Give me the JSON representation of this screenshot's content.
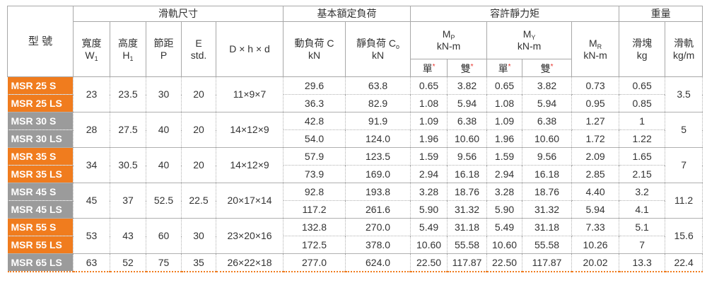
{
  "table": {
    "header": {
      "model": "型 號",
      "groups": [
        {
          "title": "滑軌尺寸",
          "cols": [
            {
              "line1": "寬度",
              "line2": "W",
              "sub2": "1"
            },
            {
              "line1": "高度",
              "line2": "H",
              "sub2": "1"
            },
            {
              "line1": "節距",
              "line2": "P"
            },
            {
              "line1": "E",
              "line2": "std."
            },
            {
              "line1": "D × h × d"
            }
          ]
        },
        {
          "title": "基本額定負荷",
          "cols": [
            {
              "line1": "動負荷 C",
              "line2": "kN"
            },
            {
              "line1": "靜負荷 C",
              "sub1": "o",
              "line2": "kN"
            }
          ]
        },
        {
          "title": "容許靜力矩",
          "cols": [
            {
              "line1": "M",
              "sub1": "P",
              "line2": "kN-m",
              "split": [
                {
                  "text": "單",
                  "mark": "*"
                },
                {
                  "text": "雙",
                  "mark": "*"
                }
              ]
            },
            {
              "line1": "M",
              "sub1": "Y",
              "line2": "kN-m",
              "split": [
                {
                  "text": "單",
                  "mark": "*"
                },
                {
                  "text": "雙",
                  "mark": "*"
                }
              ]
            },
            {
              "line1": "M",
              "sub1": "R",
              "line2": "kN-m"
            }
          ]
        },
        {
          "title": "重量",
          "cols": [
            {
              "line1": "滑塊",
              "line2": "kg"
            },
            {
              "line1": "滑軌",
              "line2": "kg/m"
            }
          ]
        }
      ]
    },
    "rows": [
      {
        "color": "#f07c1e",
        "models": [
          "MSR 25 S",
          "MSR 25 LS"
        ],
        "w1": "23",
        "h1": "23.5",
        "p": "30",
        "e": "20",
        "dhd": "11×9×7",
        "c": [
          "29.6",
          "36.3"
        ],
        "co": [
          "63.8",
          "82.9"
        ],
        "mp1": [
          "0.65",
          "1.08"
        ],
        "mp2": [
          "3.82",
          "5.94"
        ],
        "my1": [
          "0.65",
          "1.08"
        ],
        "my2": [
          "3.82",
          "5.94"
        ],
        "mr": [
          "0.73",
          "0.95"
        ],
        "slider": [
          "0.65",
          "0.85"
        ],
        "rail": "3.5"
      },
      {
        "color": "#9b9b9b",
        "models": [
          "MSR 30 S",
          "MSR 30 LS"
        ],
        "w1": "28",
        "h1": "27.5",
        "p": "40",
        "e": "20",
        "dhd": "14×12×9",
        "c": [
          "42.8",
          "54.0"
        ],
        "co": [
          "91.9",
          "124.0"
        ],
        "mp1": [
          "1.09",
          "1.96"
        ],
        "mp2": [
          "6.38",
          "10.60"
        ],
        "my1": [
          "1.09",
          "1.96"
        ],
        "my2": [
          "6.38",
          "10.60"
        ],
        "mr": [
          "1.27",
          "1.72"
        ],
        "slider": [
          "1",
          "1.22"
        ],
        "rail": "5"
      },
      {
        "color": "#f07c1e",
        "models": [
          "MSR 35 S",
          "MSR 35 LS"
        ],
        "w1": "34",
        "h1": "30.5",
        "p": "40",
        "e": "20",
        "dhd": "14×12×9",
        "c": [
          "57.9",
          "73.9"
        ],
        "co": [
          "123.5",
          "169.0"
        ],
        "mp1": [
          "1.59",
          "2.94"
        ],
        "mp2": [
          "9.56",
          "16.18"
        ],
        "my1": [
          "1.59",
          "2.94"
        ],
        "my2": [
          "9.56",
          "16.18"
        ],
        "mr": [
          "2.09",
          "2.85"
        ],
        "slider": [
          "1.65",
          "2.15"
        ],
        "rail": "7"
      },
      {
        "color": "#9b9b9b",
        "models": [
          "MSR 45 S",
          "MSR 45 LS"
        ],
        "w1": "45",
        "h1": "37",
        "p": "52.5",
        "e": "22.5",
        "dhd": "20×17×14",
        "c": [
          "92.8",
          "117.2"
        ],
        "co": [
          "193.8",
          "261.6"
        ],
        "mp1": [
          "3.28",
          "5.90"
        ],
        "mp2": [
          "18.76",
          "31.32"
        ],
        "my1": [
          "3.28",
          "5.90"
        ],
        "my2": [
          "18.76",
          "31.32"
        ],
        "mr": [
          "4.40",
          "5.94"
        ],
        "slider": [
          "3.2",
          "4.1"
        ],
        "rail": "11.2"
      },
      {
        "color": "#f07c1e",
        "models": [
          "MSR 55 S",
          "MSR 55 LS"
        ],
        "w1": "53",
        "h1": "43",
        "p": "60",
        "e": "30",
        "dhd": "23×20×16",
        "c": [
          "132.8",
          "172.5"
        ],
        "co": [
          "270.0",
          "378.0"
        ],
        "mp1": [
          "5.49",
          "10.60"
        ],
        "mp2": [
          "31.18",
          "55.58"
        ],
        "my1": [
          "5.49",
          "10.60"
        ],
        "my2": [
          "31.18",
          "55.58"
        ],
        "mr": [
          "7.33",
          "10.26"
        ],
        "slider": [
          "5.1",
          "7"
        ],
        "rail": "15.6"
      },
      {
        "color": "#9b9b9b",
        "models": [
          "MSR 65 LS"
        ],
        "w1": "63",
        "h1": "52",
        "p": "75",
        "e": "35",
        "dhd": "26×22×18",
        "c": [
          "277.0"
        ],
        "co": [
          "624.0"
        ],
        "mp1": [
          "22.50"
        ],
        "mp2": [
          "117.87"
        ],
        "my1": [
          "22.50"
        ],
        "my2": [
          "117.87"
        ],
        "mr": [
          "20.02"
        ],
        "slider": [
          "13.3"
        ],
        "rail": "22.4"
      }
    ]
  }
}
